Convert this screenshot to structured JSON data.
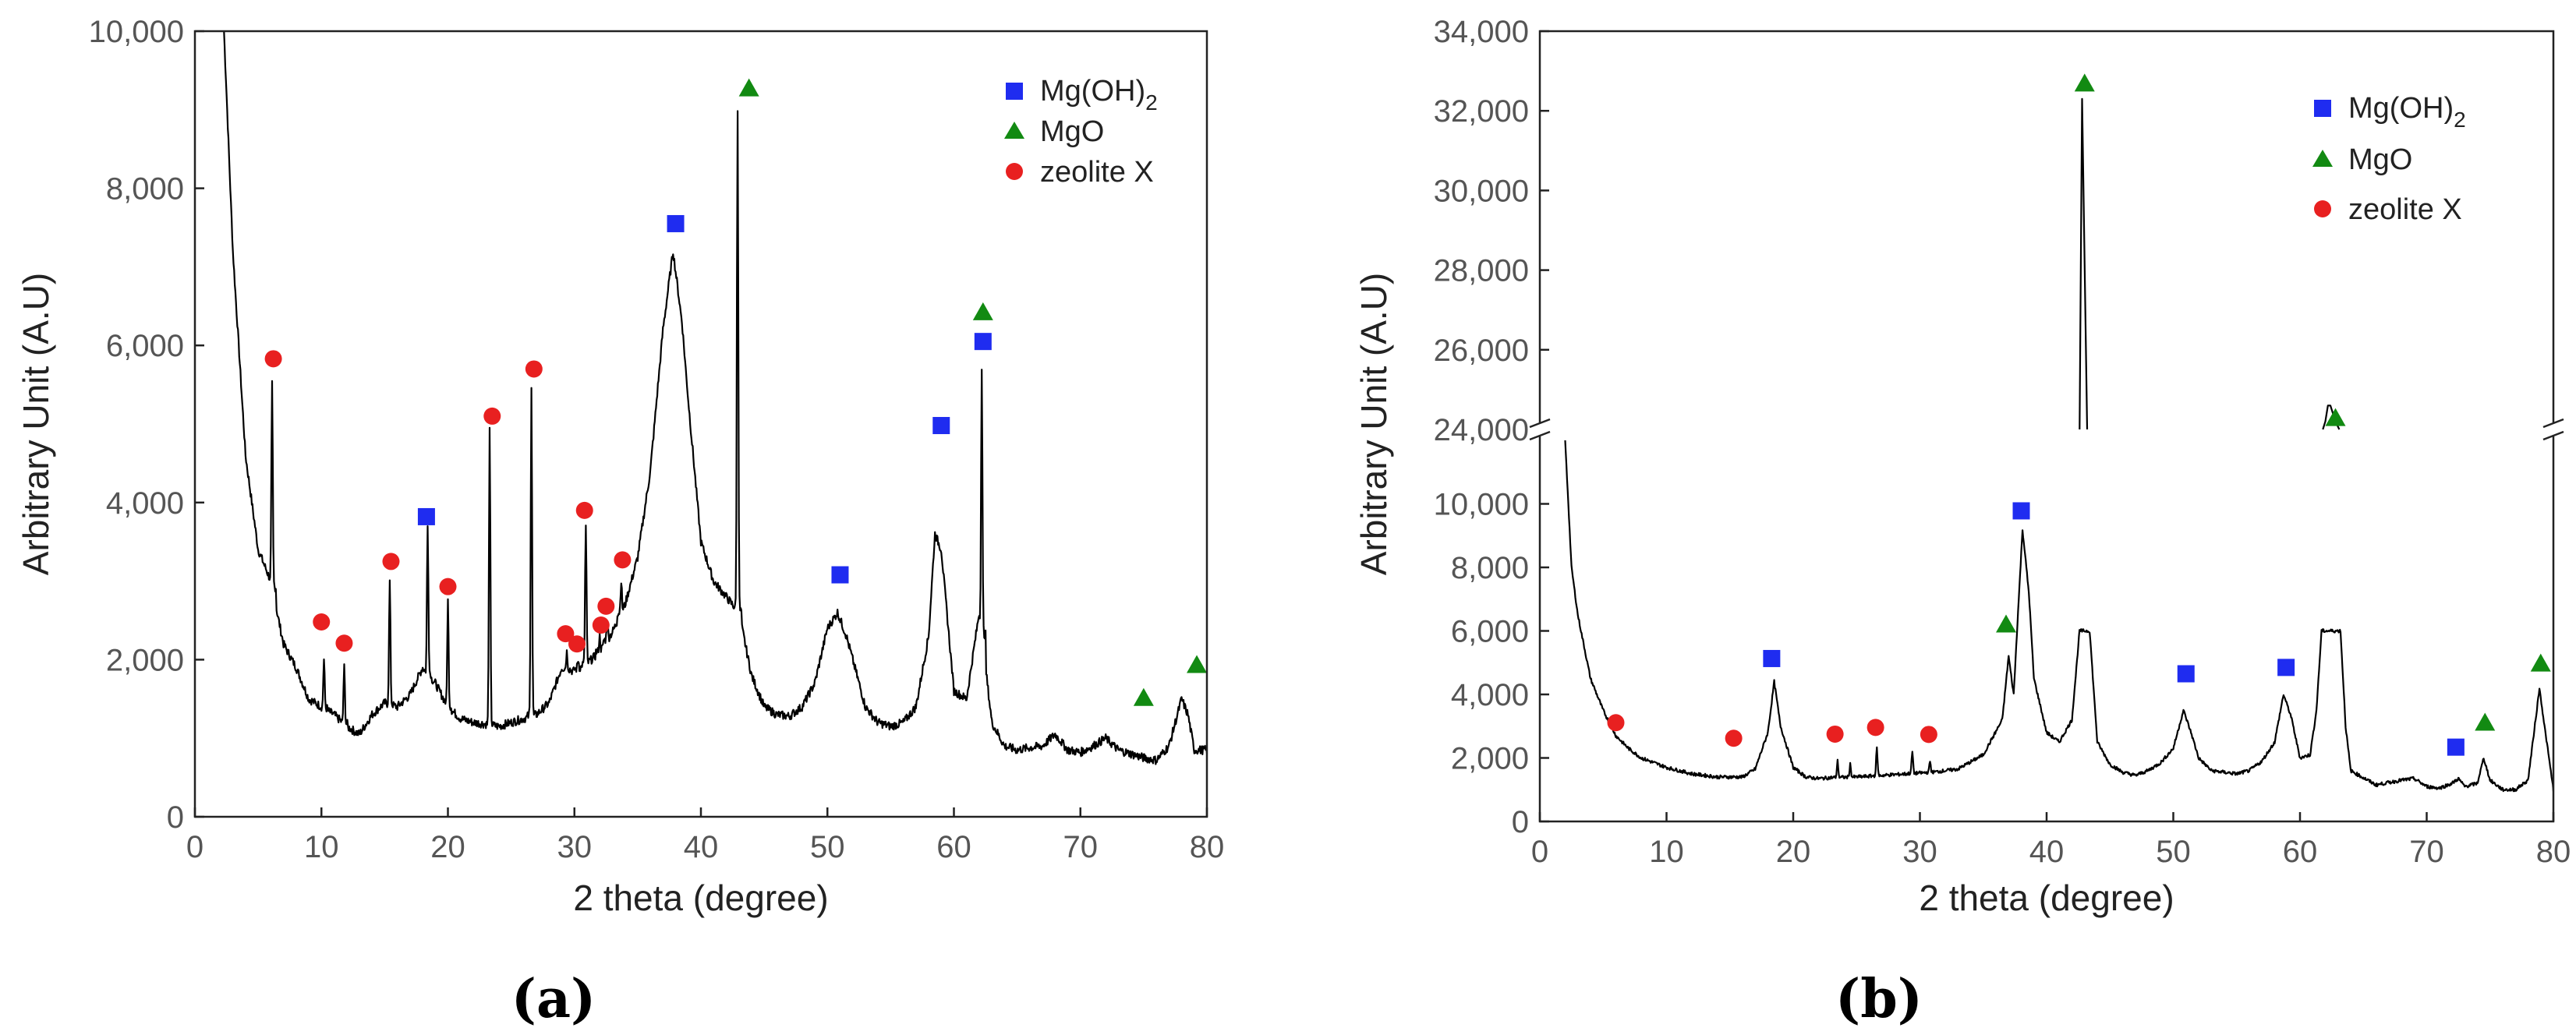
{
  "colors": {
    "mgoh2": "#1f2cf0",
    "mgo": "#128a12",
    "zeolite": "#e82020",
    "trace": "#000000"
  },
  "chart_data": [
    {
      "type": "line",
      "panel_label": "(a)",
      "xlabel": "2 theta (degree)",
      "ylabel": "Arbitrary Unit (A.U)",
      "xlim": [
        0,
        80
      ],
      "ylim": [
        0,
        10000
      ],
      "x_ticks": [
        0,
        10,
        20,
        30,
        40,
        50,
        60,
        70,
        80
      ],
      "y_ticks": [
        0,
        2000,
        4000,
        6000,
        8000,
        10000
      ],
      "x_tick_labels": [
        "0",
        "10",
        "20",
        "30",
        "40",
        "50",
        "60",
        "70",
        "80"
      ],
      "y_tick_labels": [
        "0",
        "2,000",
        "4,000",
        "6,000",
        "8,000",
        "10,000"
      ],
      "baseline": [
        [
          2.3,
          10000
        ],
        [
          3,
          7200
        ],
        [
          4,
          4600
        ],
        [
          5,
          3400
        ],
        [
          6,
          3000
        ],
        [
          7,
          2200
        ],
        [
          8,
          1900
        ],
        [
          9,
          1500
        ],
        [
          10,
          1400
        ],
        [
          11,
          1300
        ],
        [
          12,
          1150
        ],
        [
          13,
          1050
        ],
        [
          14,
          1300
        ],
        [
          15,
          1450
        ],
        [
          16,
          1400
        ],
        [
          17,
          1550
        ],
        [
          18,
          1900
        ],
        [
          19,
          1700
        ],
        [
          20,
          1400
        ],
        [
          21,
          1250
        ],
        [
          22,
          1200
        ],
        [
          23,
          1180
        ],
        [
          24,
          1150
        ],
        [
          25,
          1200
        ],
        [
          26,
          1250
        ],
        [
          27,
          1300
        ],
        [
          28,
          1450
        ],
        [
          29,
          1900
        ],
        [
          30,
          1850
        ],
        [
          31,
          1950
        ],
        [
          32,
          2100
        ],
        [
          33,
          2350
        ],
        [
          34,
          2700
        ],
        [
          35,
          3300
        ],
        [
          36,
          4400
        ],
        [
          37,
          6200
        ],
        [
          37.8,
          7200
        ],
        [
          38.5,
          6300
        ],
        [
          39,
          5300
        ],
        [
          40,
          3500
        ],
        [
          41,
          3000
        ],
        [
          42,
          2800
        ],
        [
          43,
          2600
        ],
        [
          44,
          1800
        ],
        [
          45,
          1400
        ],
        [
          46,
          1300
        ],
        [
          47,
          1280
        ],
        [
          48,
          1400
        ],
        [
          49,
          1700
        ],
        [
          50,
          2400
        ],
        [
          50.8,
          2600
        ],
        [
          51.5,
          2300
        ],
        [
          52,
          2000
        ],
        [
          53,
          1400
        ],
        [
          54,
          1200
        ],
        [
          55,
          1150
        ],
        [
          56,
          1200
        ],
        [
          57,
          1400
        ],
        [
          58,
          2300
        ],
        [
          58.5,
          3600
        ],
        [
          59,
          3400
        ],
        [
          60,
          1600
        ],
        [
          61,
          1500
        ],
        [
          62,
          2600
        ],
        [
          63,
          1200
        ],
        [
          64,
          900
        ],
        [
          65,
          850
        ],
        [
          66,
          880
        ],
        [
          67,
          900
        ],
        [
          68,
          1050
        ],
        [
          69,
          850
        ],
        [
          70,
          820
        ],
        [
          71,
          900
        ],
        [
          72,
          1000
        ],
        [
          73,
          850
        ],
        [
          74,
          800
        ],
        [
          75,
          750
        ],
        [
          76,
          720
        ],
        [
          77,
          900
        ],
        [
          78,
          1500
        ],
        [
          78.5,
          1300
        ],
        [
          79,
          850
        ],
        [
          80,
          850
        ]
      ],
      "spikes": [
        [
          6.1,
          5500
        ],
        [
          10.2,
          2000
        ],
        [
          11.8,
          1900
        ],
        [
          15.4,
          3000
        ],
        [
          18.4,
          3700
        ],
        [
          20,
          2750
        ],
        [
          23.3,
          4900
        ],
        [
          26.6,
          5500
        ],
        [
          29.4,
          2100
        ],
        [
          30.3,
          2000
        ],
        [
          30.9,
          3700
        ],
        [
          32,
          2300
        ],
        [
          32.6,
          2500
        ],
        [
          33.7,
          3000
        ],
        [
          42.9,
          9000
        ],
        [
          62.2,
          5700
        ]
      ],
      "markers": {
        "mgoh2": [
          [
            18.3,
            3820
          ],
          [
            38,
            7550
          ],
          [
            51,
            3080
          ],
          [
            59,
            4980
          ],
          [
            62.3,
            6050
          ]
        ],
        "mgo": [
          [
            43.8,
            9280
          ],
          [
            62.3,
            6430
          ],
          [
            75,
            1520
          ],
          [
            79.2,
            1940
          ]
        ],
        "zeolite": [
          [
            6.2,
            5830
          ],
          [
            10,
            2480
          ],
          [
            11.8,
            2210
          ],
          [
            15.5,
            3250
          ],
          [
            20,
            2930
          ],
          [
            23.5,
            5100
          ],
          [
            26.8,
            5700
          ],
          [
            29.3,
            2330
          ],
          [
            30.2,
            2200
          ],
          [
            30.8,
            3900
          ],
          [
            32.1,
            2440
          ],
          [
            32.5,
            2680
          ],
          [
            33.8,
            3270
          ]
        ]
      },
      "legend": [
        "Mg(OH)",
        "2",
        "MgO",
        "zeolite X"
      ]
    },
    {
      "type": "line",
      "panel_label": "(b)",
      "xlabel": "2 theta (degree)",
      "ylabel": "Arbitrary Unit (A.U)",
      "xlim": [
        0,
        80
      ],
      "ylim_lower": [
        0,
        12000
      ],
      "ylim_upper": [
        24000,
        34000
      ],
      "x_ticks": [
        0,
        10,
        20,
        30,
        40,
        50,
        60,
        70,
        80
      ],
      "y_ticks_lower": [
        0,
        2000,
        4000,
        6000,
        8000,
        10000
      ],
      "y_ticks_upper": [
        24000,
        26000,
        28000,
        30000,
        32000,
        34000
      ],
      "x_tick_labels": [
        "0",
        "10",
        "20",
        "30",
        "40",
        "50",
        "60",
        "70",
        "80"
      ],
      "y_tick_labels_lower": [
        "0",
        "2,000",
        "4,000",
        "6,000",
        "8,000",
        "10,000"
      ],
      "y_tick_labels_upper": [
        "24,000",
        "26,000",
        "28,000",
        "30,000",
        "32,000",
        "34,000"
      ],
      "baseline": [
        [
          2,
          12000
        ],
        [
          2.5,
          8000
        ],
        [
          3,
          6500
        ],
        [
          4,
          4500
        ],
        [
          5,
          3500
        ],
        [
          6,
          2700
        ],
        [
          7,
          2300
        ],
        [
          8,
          2000
        ],
        [
          10,
          1700
        ],
        [
          12,
          1500
        ],
        [
          14,
          1400
        ],
        [
          16,
          1400
        ],
        [
          17,
          1650
        ],
        [
          18,
          2800
        ],
        [
          18.5,
          4400
        ],
        [
          19,
          3000
        ],
        [
          20,
          1700
        ],
        [
          21,
          1400
        ],
        [
          22,
          1350
        ],
        [
          23,
          1380
        ],
        [
          25,
          1400
        ],
        [
          27,
          1450
        ],
        [
          29,
          1500
        ],
        [
          31,
          1550
        ],
        [
          33,
          1650
        ],
        [
          35,
          2100
        ],
        [
          36.5,
          3200
        ],
        [
          37,
          5200
        ],
        [
          37.4,
          4000
        ],
        [
          37.8,
          7000
        ],
        [
          38.1,
          9200
        ],
        [
          38.6,
          7200
        ],
        [
          39,
          4500
        ],
        [
          40,
          2800
        ],
        [
          41,
          2500
        ],
        [
          42,
          3200
        ],
        [
          42.6,
          6000
        ],
        [
          43.4,
          6000
        ],
        [
          44,
          2500
        ],
        [
          45,
          1800
        ],
        [
          46,
          1550
        ],
        [
          47,
          1450
        ],
        [
          48,
          1600
        ],
        [
          49,
          1850
        ],
        [
          50,
          2300
        ],
        [
          50.8,
          3500
        ],
        [
          51.4,
          2800
        ],
        [
          52,
          2000
        ],
        [
          53,
          1600
        ],
        [
          55,
          1500
        ],
        [
          56,
          1600
        ],
        [
          57,
          1900
        ],
        [
          58,
          2500
        ],
        [
          58.7,
          4000
        ],
        [
          59.3,
          3300
        ],
        [
          60,
          2000
        ],
        [
          60.8,
          2100
        ],
        [
          61.3,
          3500
        ],
        [
          61.7,
          6000
        ],
        [
          63.2,
          6000
        ],
        [
          63.6,
          3000
        ],
        [
          64,
          1600
        ],
        [
          66,
          1150
        ],
        [
          68,
          1300
        ],
        [
          69,
          1350
        ],
        [
          70,
          1100
        ],
        [
          71,
          1050
        ],
        [
          72,
          1200
        ],
        [
          72.5,
          1350
        ],
        [
          73,
          1100
        ],
        [
          74,
          1200
        ],
        [
          74.5,
          2000
        ],
        [
          75,
          1300
        ],
        [
          76,
          1000
        ],
        [
          77,
          1000
        ],
        [
          78,
          1300
        ],
        [
          78.5,
          2900
        ],
        [
          78.9,
          4200
        ],
        [
          79.3,
          3000
        ],
        [
          80,
          1000
        ]
      ],
      "spikes": [
        [
          23.5,
          1900
        ],
        [
          24.5,
          1800
        ],
        [
          26.6,
          2300
        ],
        [
          29.4,
          2200
        ],
        [
          30.8,
          1900
        ]
      ],
      "upper_peaks": [
        [
          42.6,
          24000
        ],
        [
          42.8,
          32300
        ],
        [
          43.2,
          24000
        ],
        [
          61.8,
          24000
        ],
        [
          62,
          24200
        ],
        [
          62.2,
          24600
        ],
        [
          62.4,
          24600
        ],
        [
          62.8,
          24200
        ],
        [
          63.1,
          24000
        ]
      ],
      "markers": {
        "mgoh2": [
          [
            18.3,
            5130
          ],
          [
            38,
            9780
          ],
          [
            51,
            4650
          ],
          [
            58.9,
            4850
          ],
          [
            72.3,
            2340
          ]
        ],
        "mgo": [
          [
            36.8,
            6220
          ],
          [
            43,
            32700
          ],
          [
            62.8,
            24300
          ],
          [
            74.6,
            3130
          ],
          [
            79,
            4990
          ]
        ],
        "zeolite": [
          [
            6,
            3110
          ],
          [
            15.3,
            2620
          ],
          [
            23.3,
            2750
          ],
          [
            26.5,
            2960
          ],
          [
            30.7,
            2740
          ]
        ]
      },
      "legend": [
        "Mg(OH)",
        "2",
        "MgO",
        "zeolite X"
      ]
    }
  ]
}
